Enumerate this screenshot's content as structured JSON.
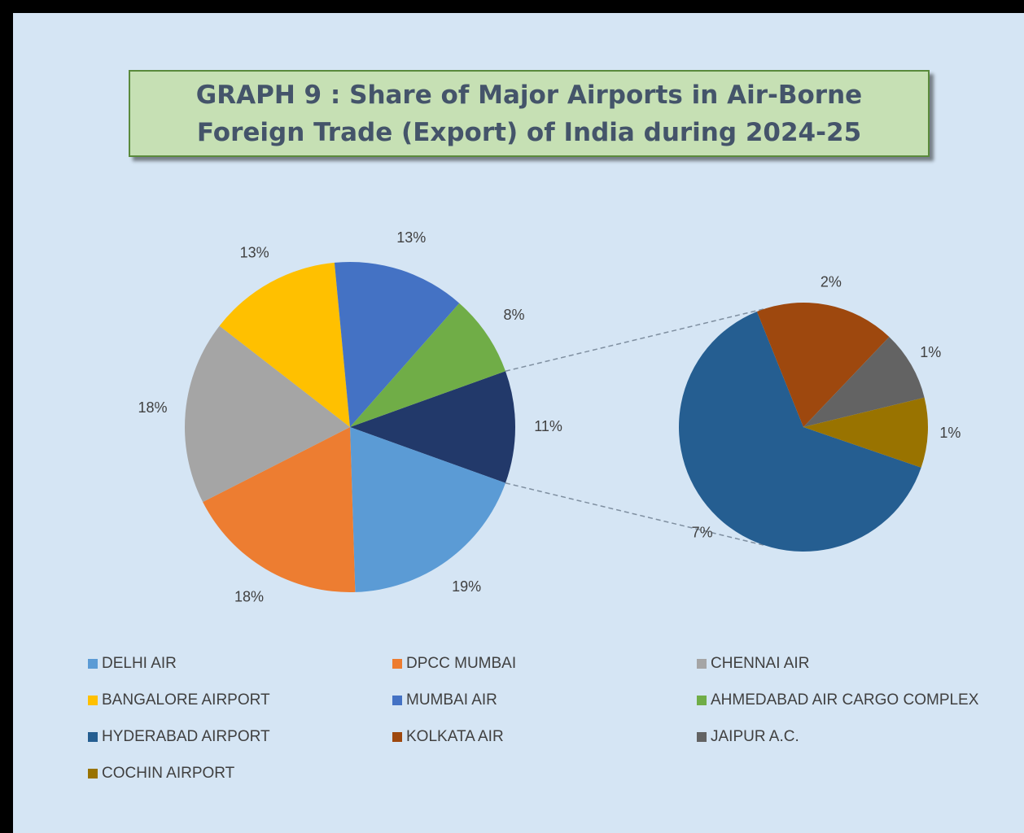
{
  "chart_data": {
    "type": "pie-of-pie",
    "title": "GRAPH 9 : Share of Major Airports in Air-Borne Foreign Trade (Export) of India during 2024-25",
    "categories": [
      "DELHI AIR",
      "DPCC MUMBAI",
      "CHENNAI AIR",
      "BANGALORE AIRPORT",
      "MUMBAI AIR",
      "AHMEDABAD AIR CARGO COMPLEX",
      "HYDERABAD AIRPORT",
      "KOLKATA AIR",
      "JAIPUR A.C.",
      "COCHIN AIRPORT"
    ],
    "values": [
      19,
      18,
      18,
      13,
      13,
      8,
      7,
      2,
      1,
      1
    ],
    "value_labels": [
      "19%",
      "18%",
      "18%",
      "13%",
      "13%",
      "8%",
      "7%",
      "2%",
      "1%",
      "1%"
    ],
    "colors": [
      "#5b9bd5",
      "#ed7d31",
      "#a5a5a5",
      "#ffc000",
      "#4472c4",
      "#70ad47",
      "#255e91",
      "#9e480e",
      "#636363",
      "#997300"
    ],
    "primary_count": 6,
    "other_value": 11,
    "other_label": "11%",
    "other_color": "#22396a"
  }
}
